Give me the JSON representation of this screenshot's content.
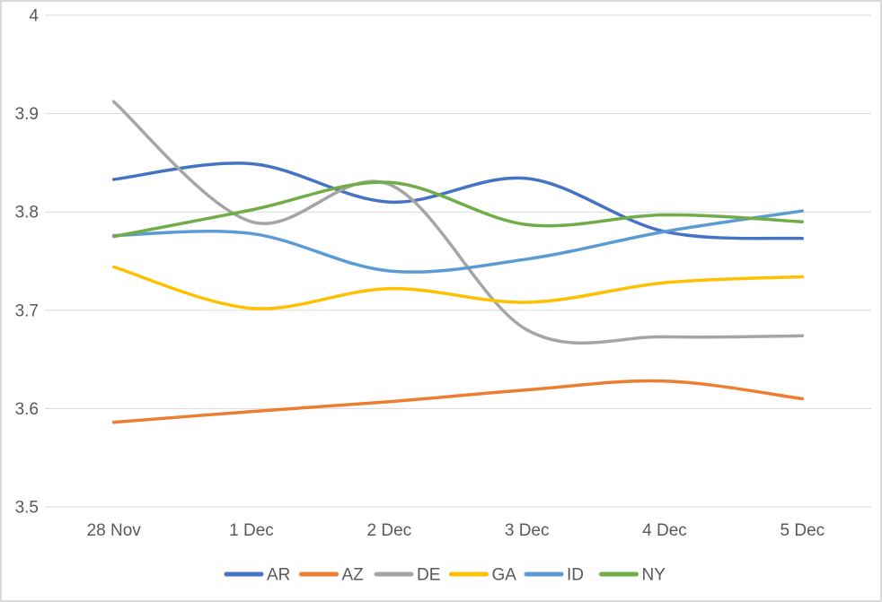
{
  "chart": {
    "background": "#FFFFFF",
    "border_color": "#D9D9D9",
    "gridline_color": "#D9D9D9",
    "axis_label_color": "#595959",
    "line_width": 3.5
  },
  "chart_data": {
    "type": "line",
    "smooth": true,
    "title": "",
    "xlabel": "",
    "ylabel": "",
    "grid": "horizontal",
    "legend_position": "bottom-center",
    "categories": [
      "28 Nov",
      "1 Dec",
      "2 Dec",
      "3 Dec",
      "4 Dec",
      "5 Dec"
    ],
    "ylim": [
      3.5,
      4.0
    ],
    "ytick_step": 0.1,
    "ytick_labels": [
      "3.5",
      "3.6",
      "3.7",
      "3.8",
      "3.9",
      "4"
    ],
    "series": [
      {
        "name": "AR",
        "color": "#4472C4",
        "values": [
          3.833,
          3.849,
          3.81,
          3.834,
          3.78,
          3.773
        ]
      },
      {
        "name": "AZ",
        "color": "#ED7D31",
        "values": [
          3.586,
          3.597,
          3.607,
          3.619,
          3.628,
          3.61
        ]
      },
      {
        "name": "DE",
        "color": "#A5A5A5",
        "values": [
          3.912,
          3.79,
          3.828,
          3.68,
          3.673,
          3.674
        ]
      },
      {
        "name": "GA",
        "color": "#FFC000",
        "values": [
          3.744,
          3.702,
          3.722,
          3.708,
          3.728,
          3.734
        ]
      },
      {
        "name": "ID",
        "color": "#5B9BD5",
        "values": [
          3.776,
          3.778,
          3.74,
          3.752,
          3.78,
          3.801
        ]
      },
      {
        "name": "NY",
        "color": "#70AD47",
        "values": [
          3.775,
          3.802,
          3.83,
          3.787,
          3.797,
          3.79
        ]
      }
    ]
  }
}
